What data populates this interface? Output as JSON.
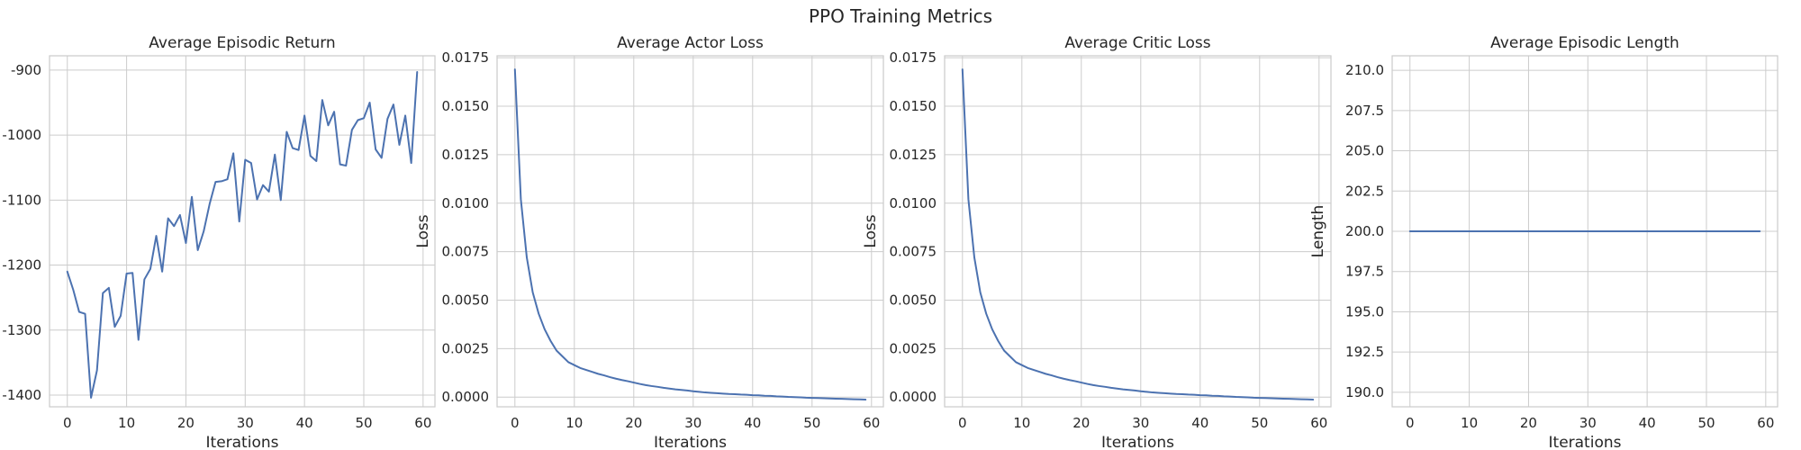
{
  "figure": {
    "title": "PPO Training Metrics"
  },
  "chart_data": [
    {
      "type": "line",
      "title": "Average Episodic Return",
      "xlabel": "Iterations",
      "ylabel": "",
      "xlim": [
        -3,
        62
      ],
      "ylim": [
        -1418,
        -878
      ],
      "xticks": [
        0,
        10,
        20,
        30,
        40,
        50,
        60
      ],
      "yticks": [
        -1400,
        -1300,
        -1200,
        -1100,
        -1000,
        -900
      ],
      "ytick_labels": [
        "-1400",
        "-1300",
        "-1200",
        "-1100",
        "-1000",
        "-900"
      ],
      "grid": true,
      "color": "#4c72b0",
      "x": [
        0,
        1,
        2,
        3,
        4,
        5,
        6,
        7,
        8,
        9,
        10,
        11,
        12,
        13,
        14,
        15,
        16,
        17,
        18,
        19,
        20,
        21,
        22,
        23,
        24,
        25,
        26,
        27,
        28,
        29,
        30,
        31,
        32,
        33,
        34,
        35,
        36,
        37,
        38,
        39,
        40,
        41,
        42,
        43,
        44,
        45,
        46,
        47,
        48,
        49,
        50,
        51,
        52,
        53,
        54,
        55,
        56,
        57,
        58,
        59
      ],
      "y": [
        -1210,
        -1238,
        -1272,
        -1275,
        -1404,
        -1362,
        -1243,
        -1235,
        -1295,
        -1278,
        -1213,
        -1212,
        -1315,
        -1222,
        -1206,
        -1155,
        -1210,
        -1128,
        -1140,
        -1123,
        -1166,
        -1095,
        -1177,
        -1148,
        -1106,
        -1072,
        -1071,
        -1068,
        -1028,
        -1133,
        -1038,
        -1043,
        -1099,
        -1077,
        -1087,
        -1030,
        -1100,
        -995,
        -1020,
        -1023,
        -970,
        -1032,
        -1040,
        -946,
        -985,
        -964,
        -1045,
        -1047,
        -992,
        -977,
        -974,
        -950,
        -1022,
        -1035,
        -975,
        -953,
        -1015,
        -970,
        -1043,
        -903
      ]
    },
    {
      "type": "line",
      "title": "Average Actor Loss",
      "xlabel": "Iterations",
      "ylabel": "Loss",
      "xlim": [
        -3,
        62
      ],
      "ylim": [
        -0.0005,
        0.0176
      ],
      "xticks": [
        0,
        10,
        20,
        30,
        40,
        50,
        60
      ],
      "yticks": [
        0.0,
        0.0025,
        0.005,
        0.0075,
        0.01,
        0.0125,
        0.015,
        0.0175
      ],
      "ytick_labels": [
        "0.0000",
        "0.0025",
        "0.0050",
        "0.0075",
        "0.0100",
        "0.0125",
        "0.0150",
        "0.0175"
      ],
      "grid": true,
      "color": "#4c72b0",
      "x": [
        0,
        1,
        2,
        3,
        4,
        5,
        6,
        7,
        8,
        9,
        10,
        11,
        12,
        13,
        14,
        15,
        16,
        17,
        18,
        19,
        20,
        21,
        22,
        23,
        24,
        25,
        26,
        27,
        28,
        29,
        30,
        31,
        32,
        33,
        34,
        35,
        36,
        37,
        38,
        39,
        40,
        41,
        42,
        43,
        44,
        45,
        46,
        47,
        48,
        49,
        50,
        51,
        52,
        53,
        54,
        55,
        56,
        57,
        58,
        59
      ],
      "y": [
        0.0169,
        0.0102,
        0.0072,
        0.0054,
        0.0043,
        0.0035,
        0.0029,
        0.0024,
        0.0021,
        0.0018,
        0.00165,
        0.0015,
        0.0014,
        0.0013,
        0.0012,
        0.00112,
        0.00103,
        0.00095,
        0.00088,
        0.00082,
        0.00075,
        0.00068,
        0.00062,
        0.00057,
        0.00053,
        0.00048,
        0.00044,
        0.0004,
        0.00037,
        0.00034,
        0.0003,
        0.00027,
        0.00024,
        0.00022,
        0.0002,
        0.00018,
        0.00016,
        0.00015,
        0.00013,
        0.00012,
        0.0001,
        9e-05,
        7e-05,
        6e-05,
        4e-05,
        3e-05,
        1e-05,
        0.0,
        -1e-05,
        -3e-05,
        -4e-05,
        -5e-05,
        -6e-05,
        -7e-05,
        -8e-05,
        -9e-05,
        -0.0001,
        -0.00011,
        -0.00012,
        -0.00013
      ]
    },
    {
      "type": "line",
      "title": "Average Critic Loss",
      "xlabel": "Iterations",
      "ylabel": "Loss",
      "xlim": [
        -3,
        62
      ],
      "ylim": [
        -0.0005,
        0.0176
      ],
      "xticks": [
        0,
        10,
        20,
        30,
        40,
        50,
        60
      ],
      "yticks": [
        0.0,
        0.0025,
        0.005,
        0.0075,
        0.01,
        0.0125,
        0.015,
        0.0175
      ],
      "ytick_labels": [
        "0.0000",
        "0.0025",
        "0.0050",
        "0.0075",
        "0.0100",
        "0.0125",
        "0.0150",
        "0.0175"
      ],
      "grid": true,
      "color": "#4c72b0",
      "x": [
        0,
        1,
        2,
        3,
        4,
        5,
        6,
        7,
        8,
        9,
        10,
        11,
        12,
        13,
        14,
        15,
        16,
        17,
        18,
        19,
        20,
        21,
        22,
        23,
        24,
        25,
        26,
        27,
        28,
        29,
        30,
        31,
        32,
        33,
        34,
        35,
        36,
        37,
        38,
        39,
        40,
        41,
        42,
        43,
        44,
        45,
        46,
        47,
        48,
        49,
        50,
        51,
        52,
        53,
        54,
        55,
        56,
        57,
        58,
        59
      ],
      "y": [
        0.0169,
        0.0102,
        0.0072,
        0.0054,
        0.0043,
        0.0035,
        0.0029,
        0.0024,
        0.0021,
        0.0018,
        0.00165,
        0.0015,
        0.0014,
        0.0013,
        0.0012,
        0.00112,
        0.00103,
        0.00095,
        0.00088,
        0.00082,
        0.00075,
        0.00068,
        0.00062,
        0.00057,
        0.00053,
        0.00048,
        0.00044,
        0.0004,
        0.00037,
        0.00034,
        0.0003,
        0.00027,
        0.00024,
        0.00022,
        0.0002,
        0.00018,
        0.00016,
        0.00015,
        0.00013,
        0.00012,
        0.0001,
        9e-05,
        7e-05,
        6e-05,
        4e-05,
        3e-05,
        1e-05,
        0.0,
        -1e-05,
        -3e-05,
        -4e-05,
        -5e-05,
        -6e-05,
        -7e-05,
        -8e-05,
        -9e-05,
        -0.0001,
        -0.00011,
        -0.00012,
        -0.00013
      ]
    },
    {
      "type": "line",
      "title": "Average Episodic Length",
      "xlabel": "Iterations",
      "ylabel": "Length",
      "xlim": [
        -3,
        62
      ],
      "ylim": [
        189.1,
        210.9
      ],
      "xticks": [
        0,
        10,
        20,
        30,
        40,
        50,
        60
      ],
      "yticks": [
        190,
        192.5,
        195,
        197.5,
        200,
        202.5,
        205,
        207.5,
        210
      ],
      "ytick_labels": [
        "190.0",
        "192.5",
        "195.0",
        "197.5",
        "200.0",
        "202.5",
        "205.0",
        "207.5",
        "210.0"
      ],
      "grid": true,
      "color": "#4c72b0",
      "x": [
        0,
        59
      ],
      "y": [
        200,
        200
      ]
    }
  ]
}
